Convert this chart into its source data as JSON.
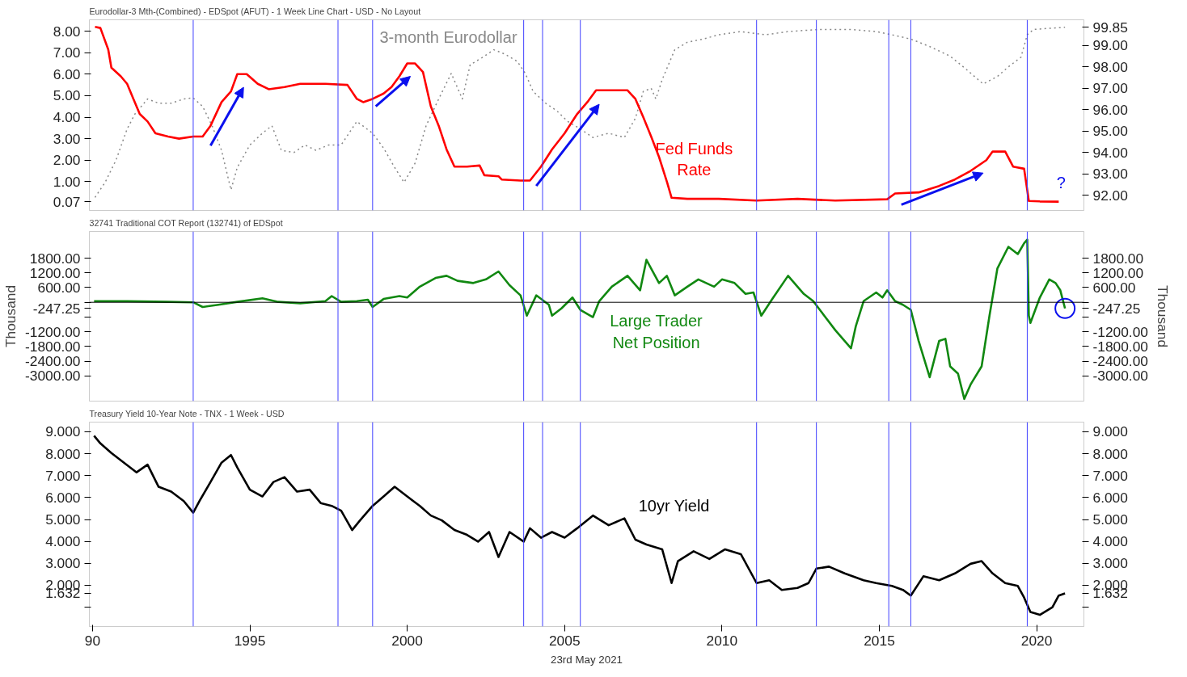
{
  "chart_data": [
    {
      "type": "line",
      "title": "Eurodollar-3 Mth-(Combined) - EDSpot (AFUT) - 1 Week Line Chart - USD - No Layout",
      "tick_labels": "y",
      "grid": false,
      "xlim": [
        1989.9,
        2021.5
      ],
      "ylim": [
        -0.34,
        8.53
      ],
      "yticks": [
        {
          "value": 0.07,
          "label": "0.07"
        },
        {
          "value": 1,
          "label": "1.00"
        },
        {
          "value": 2,
          "label": "2.00"
        },
        {
          "value": 3,
          "label": "3.00"
        },
        {
          "value": 4,
          "label": "4.00"
        },
        {
          "value": 5,
          "label": "5.00"
        },
        {
          "value": 6,
          "label": "6.00"
        },
        {
          "value": 7,
          "label": "7.00"
        },
        {
          "value": 8,
          "label": "8.00"
        }
      ],
      "y2lim": [
        91.29,
        100.2
      ],
      "y2ticks": [
        {
          "value": 92,
          "label": "92.00"
        },
        {
          "value": 93,
          "label": "93.00"
        },
        {
          "value": 94,
          "label": "94.00"
        },
        {
          "value": 95,
          "label": "95.00"
        },
        {
          "value": 96,
          "label": "96.00"
        },
        {
          "value": 97,
          "label": "97.00"
        },
        {
          "value": 98,
          "label": "98.00"
        },
        {
          "value": 99,
          "label": "99.00"
        },
        {
          "value": 99.85,
          "label": "99.85"
        }
      ],
      "series": [
        {
          "color": "#888888",
          "line_style": "dotted",
          "axis": "y2",
          "x": [
            1990.08,
            1990.4,
            1990.75,
            1991.1,
            1991.35,
            1991.75,
            1992.1,
            1992.5,
            1992.9,
            1993.2,
            1993.5,
            1993.8,
            1994.1,
            1994.4,
            1994.6,
            1995.0,
            1995.4,
            1995.7,
            1996.0,
            1996.4,
            1996.75,
            1997.1,
            1997.5,
            1997.9,
            1998.4,
            1998.9,
            1999.25,
            1999.6,
            1999.9,
            2000.25,
            2000.6,
            2001.0,
            2001.4,
            2001.75,
            2002.0,
            2002.4,
            2002.75,
            2003.1,
            2003.5,
            2003.75,
            2004.0,
            2004.4,
            2004.75,
            2005.1,
            2005.5,
            2005.9,
            2006.4,
            2006.9,
            2007.25,
            2007.5,
            2007.75,
            2007.9,
            2008.1,
            2008.5,
            2008.9,
            2009.4,
            2009.9,
            2010.6,
            2011.4,
            2012.1,
            2013.1,
            2014.1,
            2014.9,
            2015.4,
            2016.0,
            2016.6,
            2017.25,
            2017.75,
            2018.3,
            2018.75,
            2019.1,
            2019.5,
            2019.7,
            2019.9,
            2020.4,
            2020.9
          ],
          "values": [
            91.9,
            92.6,
            93.65,
            95.1,
            95.8,
            96.5,
            96.3,
            96.3,
            96.5,
            96.55,
            96.15,
            95.25,
            94.1,
            92.25,
            93.3,
            94.35,
            94.9,
            95.25,
            94.1,
            94.0,
            94.35,
            94.1,
            94.35,
            94.35,
            95.45,
            94.9,
            94.2,
            93.3,
            92.6,
            93.5,
            95.25,
            96.5,
            97.7,
            96.5,
            98.1,
            98.45,
            98.8,
            98.6,
            98.25,
            97.7,
            96.85,
            96.3,
            95.95,
            95.45,
            95.1,
            94.7,
            94.9,
            94.7,
            95.6,
            96.85,
            97.0,
            96.5,
            97.4,
            98.8,
            99.15,
            99.3,
            99.5,
            99.65,
            99.5,
            99.65,
            99.75,
            99.75,
            99.65,
            99.5,
            99.3,
            98.95,
            98.5,
            97.9,
            97.2,
            97.55,
            98.0,
            98.45,
            99.5,
            99.75,
            99.8,
            99.85
          ]
        },
        {
          "color": "#ff0000",
          "line_style": "solid",
          "x": [
            1990.08,
            1990.25,
            1990.5,
            1990.6,
            1990.9,
            1991.1,
            1991.3,
            1991.5,
            1991.75,
            1992.0,
            1992.4,
            1992.75,
            1993.2,
            1993.5,
            1993.75,
            1994.1,
            1994.4,
            1994.6,
            1994.9,
            1995.25,
            1995.6,
            1996.1,
            1996.6,
            1997.4,
            1998.1,
            1998.4,
            1998.6,
            1998.9,
            1999.25,
            1999.5,
            1999.75,
            2000.0,
            2000.25,
            2000.5,
            2000.75,
            2001.0,
            2001.25,
            2001.5,
            2001.9,
            2002.3,
            2002.45,
            2002.9,
            2003.0,
            2003.6,
            2003.9,
            2004.25,
            2004.6,
            2005.0,
            2005.4,
            2005.75,
            2006.0,
            2006.6,
            2007.0,
            2007.25,
            2007.5,
            2007.75,
            2008.0,
            2008.25,
            2008.4,
            2008.9,
            2009.9,
            2011.1,
            2012.4,
            2013.6,
            2015.25,
            2015.5,
            2016.25,
            2016.9,
            2017.4,
            2017.9,
            2018.4,
            2018.6,
            2019.0,
            2019.25,
            2019.6,
            2019.75,
            2020.1,
            2020.7
          ],
          "values": [
            8.2,
            8.15,
            7.15,
            6.3,
            5.9,
            5.55,
            4.85,
            4.15,
            3.8,
            3.25,
            3.1,
            3.0,
            3.1,
            3.1,
            3.6,
            4.7,
            5.2,
            6.0,
            6.0,
            5.55,
            5.3,
            5.4,
            5.55,
            5.55,
            5.5,
            4.85,
            4.7,
            4.85,
            5.1,
            5.4,
            5.9,
            6.5,
            6.5,
            6.1,
            4.5,
            3.6,
            2.5,
            1.7,
            1.7,
            1.75,
            1.3,
            1.25,
            1.1,
            1.05,
            1.05,
            1.7,
            2.5,
            3.25,
            4.15,
            4.75,
            5.25,
            5.25,
            5.25,
            4.85,
            4.0,
            3.1,
            2.15,
            1.0,
            0.25,
            0.2,
            0.2,
            0.12,
            0.2,
            0.12,
            0.18,
            0.45,
            0.5,
            0.8,
            1.1,
            1.5,
            2.0,
            2.4,
            2.4,
            1.7,
            1.6,
            0.1,
            0.08,
            0.07
          ]
        }
      ],
      "ref_lines": [
        {
          "axis": "x",
          "value": 1993.2,
          "color": "#4040ff"
        },
        {
          "axis": "x",
          "value": 1997.8,
          "color": "#4040ff"
        },
        {
          "axis": "x",
          "value": 1998.9,
          "color": "#4040ff"
        },
        {
          "axis": "x",
          "value": 2003.7,
          "color": "#4040ff"
        },
        {
          "axis": "x",
          "value": 2004.3,
          "color": "#4040ff"
        },
        {
          "axis": "x",
          "value": 2005.5,
          "color": "#4040ff"
        },
        {
          "axis": "x",
          "value": 2011.1,
          "color": "#4040ff"
        },
        {
          "axis": "x",
          "value": 2013.0,
          "color": "#4040ff"
        },
        {
          "axis": "x",
          "value": 2015.3,
          "color": "#4040ff"
        },
        {
          "axis": "x",
          "value": 2016.0,
          "color": "#4040ff"
        },
        {
          "axis": "x",
          "value": 2019.7,
          "color": "#4040ff"
        }
      ],
      "annotations": [
        "3-month Eurodollar",
        "Fed Funds\nRate",
        "?"
      ]
    },
    {
      "type": "line",
      "title": "32741 Traditional COT Report (132741) of EDSpot",
      "ylabel": "Thousand",
      "y2label": "Thousand",
      "tick_labels": "y",
      "grid": false,
      "xlim": [
        1989.9,
        2021.5
      ],
      "ylim": [
        -4030,
        2890
      ],
      "yticks": [
        {
          "value": -3000,
          "label": "-3000.00"
        },
        {
          "value": -2400,
          "label": "-2400.00"
        },
        {
          "value": -1800,
          "label": "-1800.00"
        },
        {
          "value": -1200,
          "label": "-1200.00"
        },
        {
          "value": -600,
          "label": null
        },
        {
          "value": -247.25,
          "label": "-247.25"
        },
        {
          "value": 0,
          "label": null
        },
        {
          "value": 600,
          "label": "600.00"
        },
        {
          "value": 1200,
          "label": "1200.00"
        },
        {
          "value": 1800,
          "label": "1800.00"
        }
      ],
      "y2lim": [
        -4030,
        2890
      ],
      "y2ticks": [
        {
          "value": -3000,
          "label": "-3000.00"
        },
        {
          "value": -2400,
          "label": "-2400.00"
        },
        {
          "value": -1800,
          "label": "-1800.00"
        },
        {
          "value": -1200,
          "label": "-1200.00"
        },
        {
          "value": -600,
          "label": null
        },
        {
          "value": -247.25,
          "label": "-247.25"
        },
        {
          "value": 0,
          "label": null
        },
        {
          "value": 600,
          "label": "600.00"
        },
        {
          "value": 1200,
          "label": "1200.00"
        },
        {
          "value": 1800,
          "label": "1800.00"
        }
      ],
      "series": [
        {
          "color": "#118811",
          "line_style": "solid",
          "x": [
            1990.05,
            1991.1,
            1992.4,
            1993.2,
            1993.5,
            1994.0,
            1994.6,
            1995.4,
            1995.9,
            1996.6,
            1997.4,
            1997.6,
            1997.9,
            1998.4,
            1998.75,
            1998.9,
            1999.25,
            1999.75,
            2000.0,
            2000.4,
            2000.9,
            2001.25,
            2001.6,
            2002.1,
            2002.5,
            2002.9,
            2003.25,
            2003.6,
            2003.8,
            2004.1,
            2004.5,
            2004.6,
            2004.9,
            2005.25,
            2005.5,
            2005.9,
            2006.1,
            2006.5,
            2007.0,
            2007.4,
            2007.6,
            2008.0,
            2008.25,
            2008.5,
            2008.9,
            2009.25,
            2009.75,
            2010.0,
            2010.4,
            2010.75,
            2011.0,
            2011.25,
            2011.6,
            2012.1,
            2012.4,
            2012.6,
            2012.9,
            2013.25,
            2013.6,
            2014.1,
            2014.25,
            2014.5,
            2014.9,
            2015.1,
            2015.25,
            2015.5,
            2015.75,
            2016.0,
            2016.25,
            2016.6,
            2016.9,
            2017.1,
            2017.25,
            2017.5,
            2017.7,
            2017.9,
            2018.25,
            2018.5,
            2018.75,
            2019.1,
            2019.4,
            2019.6,
            2019.7,
            2019.75,
            2019.8,
            2020.1,
            2020.4,
            2020.6,
            2020.75,
            2020.9
          ],
          "values": [
            47,
            47,
            18,
            0,
            -190,
            -100,
            18,
            166,
            18,
            -40,
            47,
            254,
            18,
            47,
            106,
            -190,
            136,
            254,
            195,
            638,
            993,
            1082,
            875,
            786,
            934,
            1259,
            697,
            284,
            -544,
            284,
            -100,
            -544,
            -248,
            195,
            -307,
            -603,
            47,
            638,
            1082,
            491,
            1732,
            786,
            1082,
            284,
            638,
            934,
            638,
            934,
            786,
            343,
            402,
            -544,
            136,
            1082,
            638,
            343,
            47,
            -544,
            -1135,
            -1874,
            -987,
            47,
            402,
            195,
            491,
            47,
            -100,
            -307,
            -1578,
            -3056,
            -1578,
            -1489,
            -2613,
            -2908,
            -3942,
            -3351,
            -2613,
            -544,
            1377,
            2264,
            1968,
            2411,
            2559,
            -544,
            -840,
            195,
            934,
            786,
            491,
            -247.25
          ]
        }
      ],
      "ref_lines": [
        {
          "axis": "y",
          "value": 0,
          "color": "#000000"
        },
        {
          "axis": "x",
          "value": 1993.2,
          "color": "#4040ff"
        },
        {
          "axis": "x",
          "value": 1997.8,
          "color": "#4040ff"
        },
        {
          "axis": "x",
          "value": 1998.9,
          "color": "#4040ff"
        },
        {
          "axis": "x",
          "value": 2003.7,
          "color": "#4040ff"
        },
        {
          "axis": "x",
          "value": 2004.3,
          "color": "#4040ff"
        },
        {
          "axis": "x",
          "value": 2005.5,
          "color": "#4040ff"
        },
        {
          "axis": "x",
          "value": 2011.1,
          "color": "#4040ff"
        },
        {
          "axis": "x",
          "value": 2013.0,
          "color": "#4040ff"
        },
        {
          "axis": "x",
          "value": 2015.3,
          "color": "#4040ff"
        },
        {
          "axis": "x",
          "value": 2016.0,
          "color": "#4040ff"
        },
        {
          "axis": "x",
          "value": 2019.7,
          "color": "#4040ff"
        }
      ],
      "annotations": [
        "Large Trader\nNet Position"
      ]
    },
    {
      "type": "line",
      "title": "Treasury Yield 10-Year Note - TNX - 1 Week - USD",
      "grid": false,
      "xlim": [
        1989.9,
        2021.5
      ],
      "xticks": [
        {
          "value": 1990,
          "label": "90"
        },
        1995,
        2000,
        2005,
        2010,
        2015,
        2020
      ],
      "ylim": [
        0.12,
        9.44
      ],
      "yticks": [
        {
          "value": 1,
          "label": null
        },
        {
          "value": 1.632,
          "label": "1.632"
        },
        {
          "value": 2,
          "label": "2.000"
        },
        {
          "value": 3,
          "label": "3.000"
        },
        {
          "value": 4,
          "label": "4.000"
        },
        {
          "value": 5,
          "label": "5.000"
        },
        {
          "value": 6,
          "label": "6.000"
        },
        {
          "value": 7,
          "label": "7.000"
        },
        {
          "value": 8,
          "label": "8.000"
        },
        {
          "value": 9,
          "label": "9.000"
        }
      ],
      "y2lim": [
        0.12,
        9.44
      ],
      "y2ticks": [
        {
          "value": 1,
          "label": null
        },
        {
          "value": 1.632,
          "label": "1.632"
        },
        {
          "value": 2,
          "label": "2.000"
        },
        {
          "value": 3,
          "label": "3.000"
        },
        {
          "value": 4,
          "label": "4.000"
        },
        {
          "value": 5,
          "label": "5.000"
        },
        {
          "value": 6,
          "label": "6.000"
        },
        {
          "value": 7,
          "label": "7.000"
        },
        {
          "value": 8,
          "label": "8.000"
        },
        {
          "value": 9,
          "label": "9.000"
        }
      ],
      "series": [
        {
          "color": "#000000",
          "line_style": "solid",
          "x": [
            1990.05,
            1990.25,
            1990.6,
            1991.0,
            1991.4,
            1991.75,
            1992.1,
            1992.5,
            1992.9,
            1993.2,
            1993.4,
            1993.75,
            1994.1,
            1994.4,
            1994.6,
            1995.0,
            1995.4,
            1995.75,
            1996.1,
            1996.5,
            1996.9,
            1997.25,
            1997.6,
            1997.9,
            1998.25,
            1998.5,
            1998.9,
            1999.25,
            1999.6,
            2000.0,
            2000.4,
            2000.75,
            2001.1,
            2001.5,
            2001.9,
            2002.25,
            2002.6,
            2002.9,
            2003.25,
            2003.7,
            2003.9,
            2004.25,
            2004.6,
            2005.0,
            2005.4,
            2005.9,
            2006.4,
            2006.9,
            2007.25,
            2007.6,
            2008.1,
            2008.4,
            2008.6,
            2009.1,
            2009.6,
            2010.1,
            2010.6,
            2011.1,
            2011.5,
            2011.9,
            2012.4,
            2012.75,
            2013.0,
            2013.4,
            2013.9,
            2014.5,
            2014.9,
            2015.4,
            2015.75,
            2016.0,
            2016.4,
            2016.9,
            2017.4,
            2017.9,
            2018.25,
            2018.6,
            2019.0,
            2019.4,
            2019.6,
            2019.8,
            2020.1,
            2020.5,
            2020.7,
            2020.9
          ],
          "values": [
            8.82,
            8.47,
            8.03,
            7.59,
            7.15,
            7.5,
            6.49,
            6.27,
            5.84,
            5.31,
            5.84,
            6.71,
            7.59,
            7.94,
            7.37,
            6.36,
            6.05,
            6.71,
            6.93,
            6.27,
            6.36,
            5.75,
            5.62,
            5.4,
            4.52,
            4.96,
            5.62,
            6.05,
            6.49,
            6.05,
            5.62,
            5.18,
            4.96,
            4.52,
            4.3,
            3.99,
            4.43,
            3.29,
            4.43,
            3.99,
            4.6,
            4.17,
            4.43,
            4.17,
            4.6,
            5.18,
            4.74,
            5.05,
            4.08,
            3.86,
            3.64,
            2.1,
            3.1,
            3.55,
            3.2,
            3.64,
            3.42,
            2.1,
            2.23,
            1.79,
            1.88,
            2.1,
            2.76,
            2.85,
            2.54,
            2.23,
            2.1,
            1.97,
            1.79,
            1.53,
            2.41,
            2.23,
            2.54,
            2.98,
            3.1,
            2.54,
            2.1,
            1.97,
            1.44,
            0.78,
            0.65,
            1.0,
            1.53,
            1.632
          ]
        }
      ],
      "ref_lines": [
        {
          "axis": "x",
          "value": 1993.2,
          "color": "#4040ff"
        },
        {
          "axis": "x",
          "value": 1997.8,
          "color": "#4040ff"
        },
        {
          "axis": "x",
          "value": 1998.9,
          "color": "#4040ff"
        },
        {
          "axis": "x",
          "value": 2003.7,
          "color": "#4040ff"
        },
        {
          "axis": "x",
          "value": 2004.3,
          "color": "#4040ff"
        },
        {
          "axis": "x",
          "value": 2005.5,
          "color": "#4040ff"
        },
        {
          "axis": "x",
          "value": 2011.1,
          "color": "#4040ff"
        },
        {
          "axis": "x",
          "value": 2013.0,
          "color": "#4040ff"
        },
        {
          "axis": "x",
          "value": 2015.3,
          "color": "#4040ff"
        },
        {
          "axis": "x",
          "value": 2016.0,
          "color": "#4040ff"
        },
        {
          "axis": "x",
          "value": 2019.7,
          "color": "#4040ff"
        }
      ],
      "annotations": [
        "10yr Yield",
        "23rd May 2021"
      ]
    }
  ]
}
